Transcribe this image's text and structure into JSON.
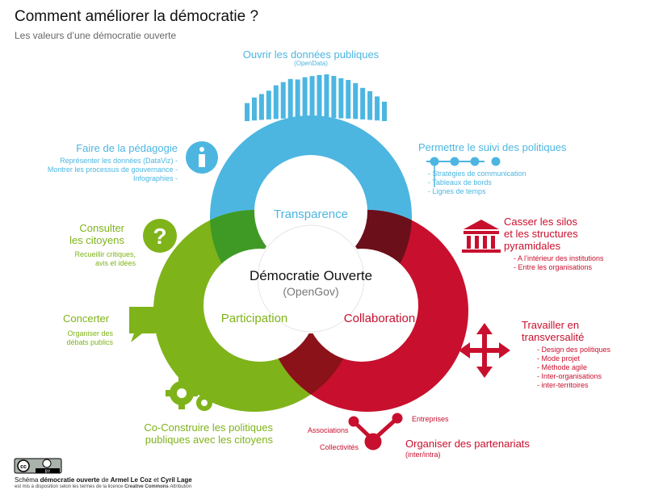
{
  "header": {
    "title": "Comment améliorer la démocratie ?",
    "subtitle": "Les valeurs d’une démocratie ouverte"
  },
  "center": {
    "title": "Démocratie Ouverte",
    "subtitle": "(OpenGov)"
  },
  "circles": {
    "transparence": "Transparence",
    "participation": "Participation",
    "collaboration": "Collaboration"
  },
  "colors": {
    "transparence": "#4cb6e1",
    "participation": "#7fb31a",
    "collaboration": "#c8102e",
    "overlap_tp": "#3e9a25",
    "overlap_tc": "#6b0f1a",
    "overlap_pc": "#8a1218"
  },
  "opendata": {
    "title": "Ouvrir les données publiques",
    "subtitle": "(OpenData)",
    "bar_levels": [
      0.28,
      0.42,
      0.5,
      0.58,
      0.72,
      0.8,
      0.88,
      0.86,
      0.92,
      0.95,
      0.98,
      1.0,
      0.96,
      0.9,
      0.86,
      0.78,
      0.66,
      0.58,
      0.45,
      0.32
    ]
  },
  "pedagogie": {
    "title": "Faire de la pédagogie",
    "items": [
      "Représenter les données (DataViz) -",
      "Montrer les processus de gouvernance -",
      "Infographies -"
    ],
    "icon": "info-icon"
  },
  "suivi": {
    "title": "Permettre le suivi des politiques",
    "items": [
      "- Stratégies de communication",
      "- Tableaux de bords",
      "- Lignes de temps"
    ],
    "icon": "timeline-icon"
  },
  "consulter": {
    "title_line1": "Consulter",
    "title_line2": "les citoyens",
    "items": [
      "Recueillir critiques,",
      "avis et idées"
    ],
    "icon": "question-icon"
  },
  "concerter": {
    "title": "Concerter",
    "items": [
      "Organiser des",
      "débats publics"
    ],
    "icon": "speech-bubble-icon"
  },
  "coconstruire": {
    "title_line1": "Co-Construire les politiques",
    "title_line2": "publiques avec les citoyens",
    "icon": "gears-icon"
  },
  "silos": {
    "title_line1": "Casser les silos",
    "title_line2": "et les structures",
    "title_line3": "pyramidales",
    "items": [
      "- A l’intérieur des institutions",
      "- Entre les organisations"
    ],
    "icon": "institution-icon"
  },
  "transversalite": {
    "title_line1": "Travailler en",
    "title_line2": "transversalité",
    "items": [
      "- Design des politiques",
      "- Mode projet",
      "- Méthode agile",
      "- Inter-organisations",
      "- inter-territoires"
    ],
    "icon": "cross-arrows-icon"
  },
  "partenariats": {
    "title": "Organiser des partenariats",
    "subtitle": "(inter/intra)",
    "associations": "Associations",
    "entreprises": "Entreprises",
    "collectivites": "Collectivités",
    "icon": "network-icon"
  },
  "footer": {
    "cc_badge": "cc",
    "by_badge": "BY",
    "credit_prefix": "Schéma ",
    "credit_bold": "démocratie ouverte",
    "credit_mid": " de ",
    "author1": "Armel Le Coz",
    "credit_and": " et ",
    "author2": "Cyril Lage",
    "license_prefix": "est mis à disposition selon les termes de la licence ",
    "license_name": "Creative Commons",
    "license_suffix": " Attribution"
  }
}
